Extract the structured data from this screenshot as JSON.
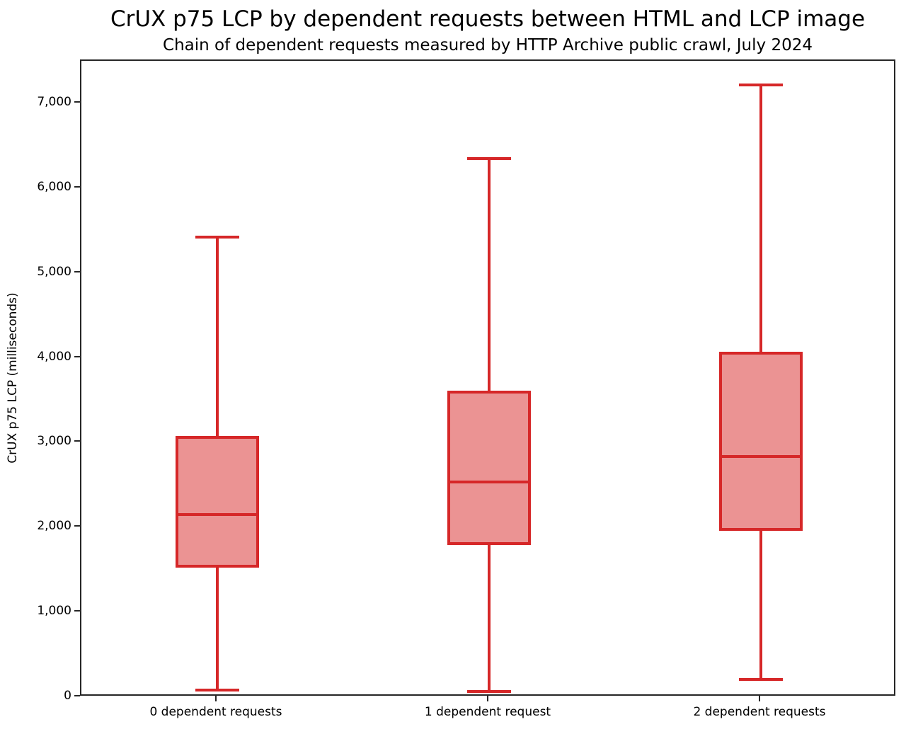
{
  "chart_data": {
    "type": "boxplot",
    "title": "CrUX p75 LCP by dependent requests between HTML and LCP image",
    "subtitle": "Chain of dependent requests measured by HTTP Archive public crawl, July 2024",
    "xlabel": "",
    "ylabel": "CrUX p75 LCP (milliseconds)",
    "ylim": [
      0,
      7500
    ],
    "yticks": [
      0,
      1000,
      2000,
      3000,
      4000,
      5000,
      6000,
      7000
    ],
    "ytick_labels": [
      "0",
      "1,000",
      "2,000",
      "3,000",
      "4,000",
      "5,000",
      "6,000",
      "7,000"
    ],
    "categories": [
      "0 dependent requests",
      "1 dependent request",
      "2 dependent requests"
    ],
    "series": [
      {
        "name": "0 dependent requests",
        "whisker_low": 80,
        "q1": 1525,
        "median": 2150,
        "q3": 3080,
        "whisker_high": 5420,
        "outliers": []
      },
      {
        "name": "1 dependent request",
        "whisker_low": 70,
        "q1": 1790,
        "median": 2540,
        "q3": 3610,
        "whisker_high": 6350,
        "outliers": []
      },
      {
        "name": "2 dependent requests",
        "whisker_low": 210,
        "q1": 1960,
        "median": 2840,
        "q3": 4070,
        "whisker_high": 7220,
        "outliers": []
      }
    ],
    "grid": false,
    "legend": "none",
    "colors": {
      "box_edge": "#d62728",
      "box_fill": "#eb9393",
      "spine": "#262626",
      "text": "#000000",
      "background": "#ffffff"
    }
  }
}
